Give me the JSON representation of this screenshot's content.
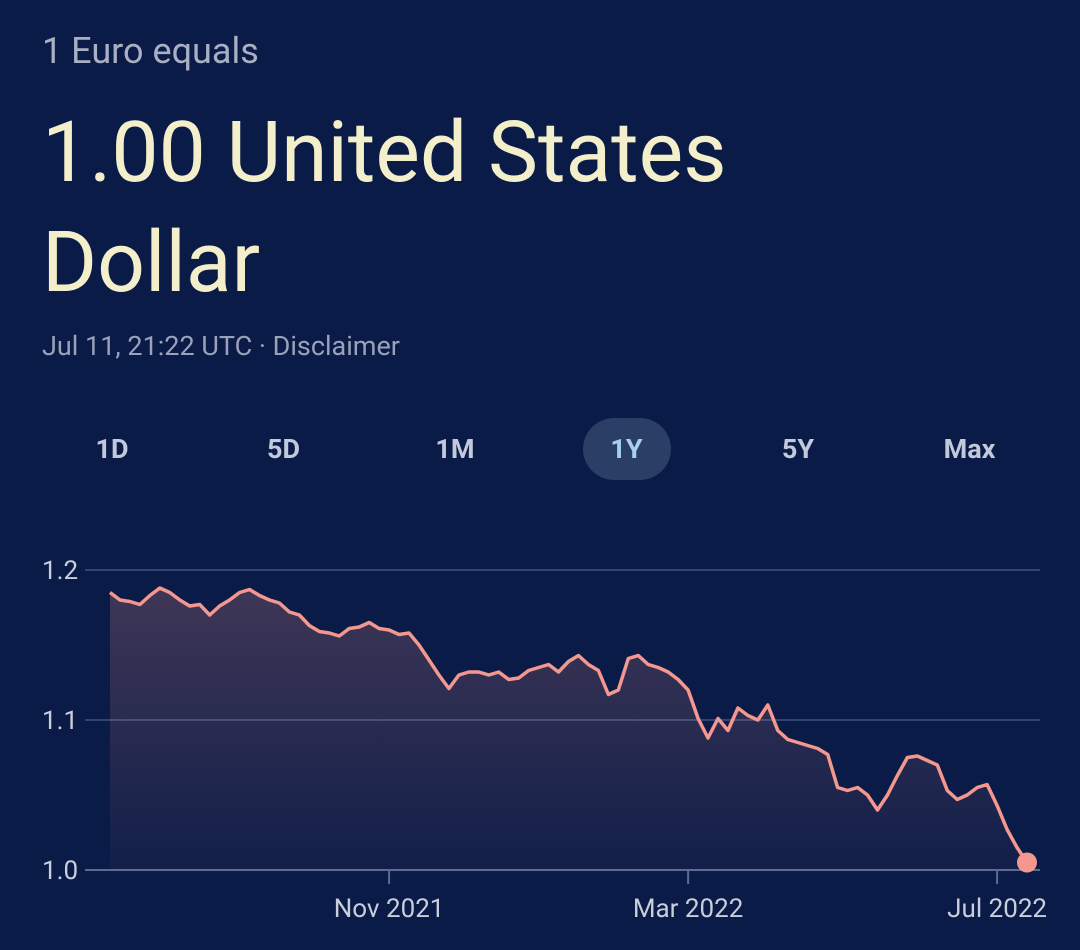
{
  "header": {
    "subtitle": "1 Euro equals",
    "title": "1.00 United States Dollar",
    "timestamp": "Jul 11, 21:22 UTC",
    "separator": "·",
    "disclaimer": "Disclaimer"
  },
  "tabs": {
    "items": [
      "1D",
      "5D",
      "1M",
      "1Y",
      "5Y",
      "Max"
    ],
    "selected_index": 3
  },
  "chart_data": {
    "type": "line",
    "series": [
      {
        "color": "#f4978e",
        "values": [
          1.185,
          1.18,
          1.179,
          1.177,
          1.183,
          1.188,
          1.185,
          1.18,
          1.176,
          1.177,
          1.17,
          1.176,
          1.18,
          1.185,
          1.187,
          1.183,
          1.18,
          1.178,
          1.172,
          1.17,
          1.163,
          1.159,
          1.158,
          1.156,
          1.161,
          1.162,
          1.165,
          1.161,
          1.16,
          1.157,
          1.158,
          1.15,
          1.14,
          1.13,
          1.121,
          1.13,
          1.132,
          1.132,
          1.13,
          1.132,
          1.127,
          1.128,
          1.133,
          1.135,
          1.137,
          1.132,
          1.139,
          1.143,
          1.137,
          1.133,
          1.117,
          1.12,
          1.141,
          1.143,
          1.137,
          1.135,
          1.132,
          1.127,
          1.12,
          1.101,
          1.088,
          1.101,
          1.093,
          1.108,
          1.103,
          1.1,
          1.11,
          1.093,
          1.087,
          1.085,
          1.083,
          1.081,
          1.077,
          1.055,
          1.053,
          1.055,
          1.05,
          1.04,
          1.05,
          1.063,
          1.075,
          1.076,
          1.073,
          1.07,
          1.053,
          1.047,
          1.05,
          1.055,
          1.057,
          1.043,
          1.027,
          1.015,
          1.005
        ]
      }
    ],
    "xlim": [
      0,
      92
    ],
    "xticks": [
      {
        "value": 28,
        "label": "Nov 2021"
      },
      {
        "value": 58,
        "label": "Mar 2022"
      },
      {
        "value": 89,
        "label": "Jul 2022"
      }
    ],
    "ylim": [
      1.0,
      1.2
    ],
    "yticks": [
      {
        "value": 1.0,
        "label": "1.0"
      },
      {
        "value": 1.1,
        "label": "1.1"
      },
      {
        "value": 1.2,
        "label": "1.2"
      }
    ],
    "grid": true
  }
}
